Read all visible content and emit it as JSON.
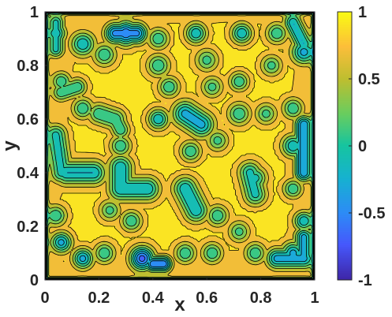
{
  "chart_data": {
    "type": "heatmap",
    "subtype": "filled-contour",
    "title": "",
    "xlabel": "x",
    "ylabel": "y",
    "xlim": [
      0,
      1
    ],
    "ylim": [
      0,
      1
    ],
    "xticks": [
      "0",
      "0.2",
      "0.4",
      "0.6",
      "0.8",
      "1"
    ],
    "yticks": [
      "0",
      "0.2",
      "0.4",
      "0.6",
      "0.8",
      "1"
    ],
    "colorbar": {
      "colormap": "parula",
      "range": [
        -1,
        1
      ],
      "ticks": [
        "-1",
        "-0.5",
        "0",
        "0.5",
        "1"
      ]
    },
    "contour_levels": [
      -0.8,
      -0.6,
      -0.4,
      -0.2,
      0,
      0.2,
      0.4,
      0.6,
      0.8
    ],
    "background_value": 0.8,
    "boundary_value": -1,
    "features": [
      {
        "x": 0.3,
        "y": 0.92,
        "r": 0.03,
        "v": -0.6
      },
      {
        "x": 0.14,
        "y": 0.88,
        "r": 0.03,
        "v": -0.2
      },
      {
        "x": 0.04,
        "y": 0.92,
        "r": 0.024,
        "v": -0.2
      },
      {
        "x": 0.22,
        "y": 0.84,
        "r": 0.028,
        "v": 0.0
      },
      {
        "x": 0.42,
        "y": 0.9,
        "r": 0.026,
        "v": 0.0
      },
      {
        "x": 0.56,
        "y": 0.92,
        "r": 0.026,
        "v": -0.2
      },
      {
        "x": 0.73,
        "y": 0.92,
        "r": 0.026,
        "v": -0.2
      },
      {
        "x": 0.86,
        "y": 0.92,
        "r": 0.026,
        "v": 0.0
      },
      {
        "x": 0.96,
        "y": 0.85,
        "r": 0.03,
        "v": -0.3
      },
      {
        "x": 0.42,
        "y": 0.8,
        "r": 0.028,
        "v": 0.0
      },
      {
        "x": 0.6,
        "y": 0.82,
        "r": 0.028,
        "v": 0.1
      },
      {
        "x": 0.84,
        "y": 0.8,
        "r": 0.026,
        "v": 0.1
      },
      {
        "x": 0.06,
        "y": 0.74,
        "r": 0.024,
        "v": 0.0
      },
      {
        "x": 0.46,
        "y": 0.72,
        "r": 0.026,
        "v": 0.0
      },
      {
        "x": 0.62,
        "y": 0.72,
        "r": 0.026,
        "v": 0.1
      },
      {
        "x": 0.72,
        "y": 0.74,
        "r": 0.024,
        "v": 0.0
      },
      {
        "x": 0.14,
        "y": 0.64,
        "r": 0.026,
        "v": 0.0
      },
      {
        "x": 0.42,
        "y": 0.6,
        "r": 0.026,
        "v": -0.2
      },
      {
        "x": 0.72,
        "y": 0.62,
        "r": 0.028,
        "v": 0.0
      },
      {
        "x": 0.82,
        "y": 0.62,
        "r": 0.026,
        "v": 0.1
      },
      {
        "x": 0.92,
        "y": 0.64,
        "r": 0.026,
        "v": 0.0
      },
      {
        "x": 0.14,
        "y": 0.4,
        "r": 0.03,
        "v": -0.2
      },
      {
        "x": 0.28,
        "y": 0.5,
        "r": 0.026,
        "v": 0.0
      },
      {
        "x": 0.54,
        "y": 0.48,
        "r": 0.026,
        "v": 0.0
      },
      {
        "x": 0.64,
        "y": 0.52,
        "r": 0.026,
        "v": 0.1
      },
      {
        "x": 0.78,
        "y": 0.38,
        "r": 0.028,
        "v": -0.1
      },
      {
        "x": 0.92,
        "y": 0.5,
        "r": 0.028,
        "v": -0.2
      },
      {
        "x": 0.92,
        "y": 0.34,
        "r": 0.024,
        "v": 0.0
      },
      {
        "x": 0.04,
        "y": 0.24,
        "r": 0.026,
        "v": 0.0
      },
      {
        "x": 0.24,
        "y": 0.26,
        "r": 0.026,
        "v": 0.1
      },
      {
        "x": 0.32,
        "y": 0.22,
        "r": 0.026,
        "v": 0.0
      },
      {
        "x": 0.64,
        "y": 0.24,
        "r": 0.026,
        "v": 0.0
      },
      {
        "x": 0.72,
        "y": 0.18,
        "r": 0.026,
        "v": 0.1
      },
      {
        "x": 0.96,
        "y": 0.22,
        "r": 0.024,
        "v": -0.2
      },
      {
        "x": 0.06,
        "y": 0.14,
        "r": 0.026,
        "v": -0.3
      },
      {
        "x": 0.14,
        "y": 0.08,
        "r": 0.026,
        "v": -0.3
      },
      {
        "x": 0.22,
        "y": 0.1,
        "r": 0.026,
        "v": 0.0
      },
      {
        "x": 0.36,
        "y": 0.08,
        "r": 0.03,
        "v": -0.7
      },
      {
        "x": 0.52,
        "y": 0.1,
        "r": 0.026,
        "v": 0.0
      },
      {
        "x": 0.62,
        "y": 0.1,
        "r": 0.026,
        "v": 0.0
      },
      {
        "x": 0.78,
        "y": 0.1,
        "r": 0.026,
        "v": 0.0
      },
      {
        "x": 0.92,
        "y": 0.1,
        "r": 0.028,
        "v": -0.3
      }
    ],
    "elongated_features": [
      {
        "x1": 0.12,
        "y1": 0.72,
        "x2": 0.06,
        "y2": 0.7,
        "r": 0.022,
        "v": 0.0
      },
      {
        "x1": 0.2,
        "y1": 0.62,
        "x2": 0.26,
        "y2": 0.6,
        "r": 0.026,
        "v": 0.0
      },
      {
        "x1": 0.26,
        "y1": 0.6,
        "x2": 0.28,
        "y2": 0.56,
        "r": 0.022,
        "v": 0.0
      },
      {
        "x1": 0.52,
        "y1": 0.62,
        "x2": 0.58,
        "y2": 0.58,
        "r": 0.032,
        "v": -0.3
      },
      {
        "x1": 0.04,
        "y1": 0.54,
        "x2": 0.06,
        "y2": 0.4,
        "r": 0.026,
        "v": -0.1
      },
      {
        "x1": 0.08,
        "y1": 0.4,
        "x2": 0.18,
        "y2": 0.4,
        "r": 0.03,
        "v": -0.2
      },
      {
        "x1": 0.28,
        "y1": 0.42,
        "x2": 0.28,
        "y2": 0.34,
        "r": 0.03,
        "v": -0.2
      },
      {
        "x1": 0.28,
        "y1": 0.34,
        "x2": 0.38,
        "y2": 0.34,
        "r": 0.03,
        "v": -0.2
      },
      {
        "x1": 0.52,
        "y1": 0.34,
        "x2": 0.56,
        "y2": 0.26,
        "r": 0.03,
        "v": -0.2
      },
      {
        "x1": 0.76,
        "y1": 0.4,
        "x2": 0.78,
        "y2": 0.32,
        "r": 0.028,
        "v": -0.1
      },
      {
        "x1": 0.96,
        "y1": 0.58,
        "x2": 0.96,
        "y2": 0.4,
        "r": 0.022,
        "v": -0.4
      },
      {
        "x1": 0.4,
        "y1": 0.06,
        "x2": 0.44,
        "y2": 0.06,
        "r": 0.02,
        "v": -0.6
      },
      {
        "x1": 0.86,
        "y1": 0.08,
        "x2": 0.96,
        "y2": 0.08,
        "r": 0.026,
        "v": -0.3
      },
      {
        "x1": 0.96,
        "y1": 0.08,
        "x2": 0.96,
        "y2": 0.16,
        "r": 0.022,
        "v": -0.3
      },
      {
        "x1": 0.26,
        "y1": 0.92,
        "x2": 0.34,
        "y2": 0.92,
        "r": 0.026,
        "v": -0.5
      },
      {
        "x1": 0.04,
        "y1": 0.96,
        "x2": 0.04,
        "y2": 0.86,
        "r": 0.02,
        "v": -0.1
      },
      {
        "x1": 0.92,
        "y1": 0.96,
        "x2": 0.96,
        "y2": 0.88,
        "r": 0.022,
        "v": -0.2
      }
    ],
    "high_patches": [
      {
        "x": 0.3,
        "y": 0.64,
        "r": 0.045,
        "v": 1.0
      },
      {
        "x": 0.7,
        "y": 0.82,
        "r": 0.05,
        "v": 1.0
      },
      {
        "x": 0.22,
        "y": 0.44,
        "r": 0.03,
        "v": 1.0
      },
      {
        "x": 0.36,
        "y": 0.42,
        "r": 0.03,
        "v": 1.0
      },
      {
        "x": 0.5,
        "y": 0.42,
        "r": 0.03,
        "v": 1.0
      },
      {
        "x": 0.14,
        "y": 0.2,
        "r": 0.035,
        "v": 1.0
      },
      {
        "x": 0.46,
        "y": 0.2,
        "r": 0.03,
        "v": 1.0
      },
      {
        "x": 0.48,
        "y": 0.88,
        "r": 0.025,
        "v": 1.0
      },
      {
        "x": 0.8,
        "y": 0.28,
        "r": 0.025,
        "v": 1.0
      }
    ]
  }
}
